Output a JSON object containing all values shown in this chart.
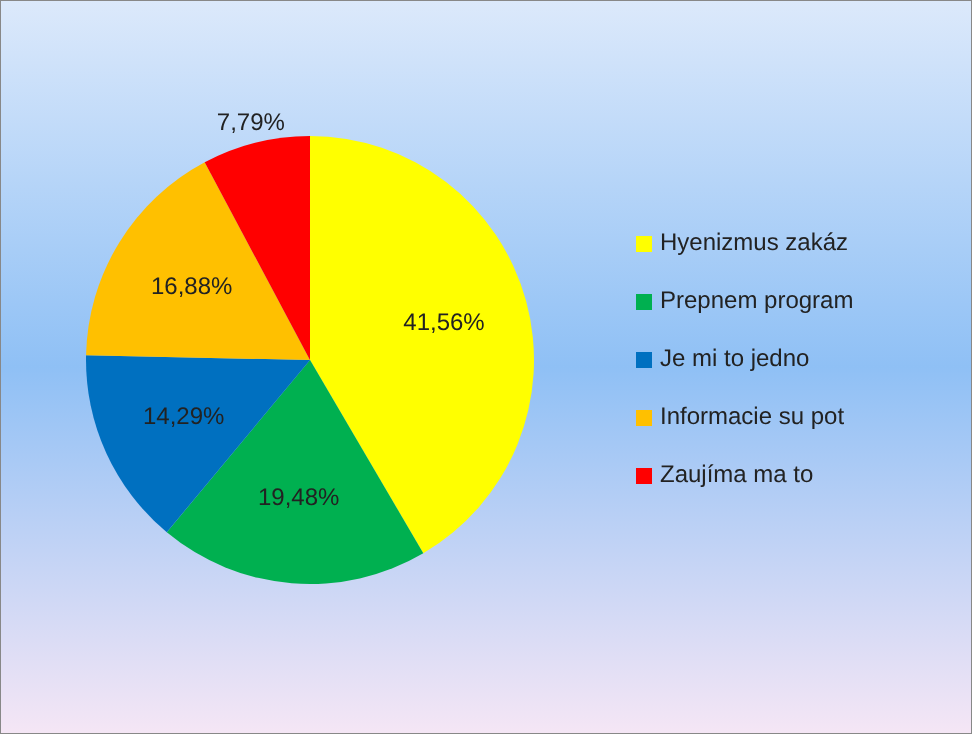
{
  "chart_data": {
    "type": "pie",
    "categories": [
      "Hyenizmus zakáz",
      "Prepnem program",
      "Je mi to jedno",
      "Informacie su pot",
      "Zaujíma ma to"
    ],
    "values": [
      41.56,
      19.48,
      14.29,
      16.88,
      7.79
    ],
    "colors": [
      "#ffff00",
      "#00b050",
      "#0070c0",
      "#ffc000",
      "#ff0000"
    ],
    "value_labels": [
      "41,56%",
      "19,48%",
      "14,29%",
      "16,88%",
      "7,79%"
    ],
    "legend": "right"
  }
}
